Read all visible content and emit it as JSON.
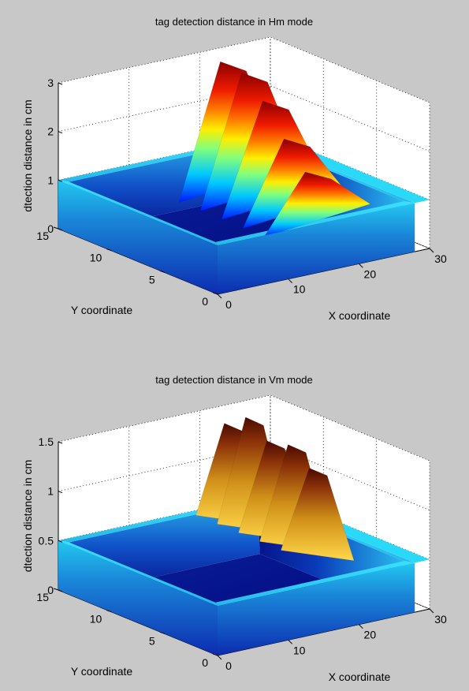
{
  "figure": {
    "background": "#c8c8c8"
  },
  "chart_data": [
    {
      "type": "surface",
      "title": "tag detection distance in Hm mode",
      "xlabel": "X coordinate",
      "ylabel": "Y coordinate",
      "zlabel": "dtection distance in cm",
      "xlim": [
        0,
        30
      ],
      "ylim": [
        0,
        15
      ],
      "zlim": [
        0,
        3
      ],
      "xticks": [
        "0",
        "10",
        "20",
        "30"
      ],
      "yticks": [
        "0",
        "5",
        "10",
        "15"
      ],
      "zticks": [
        "0",
        "1",
        "2",
        "3"
      ],
      "grid": true,
      "colormap": "jet",
      "plateau_z": 1,
      "floor_z": 0,
      "peaks": [
        {
          "x": 21,
          "y": 12.5,
          "z": 2.95
        },
        {
          "x": 21,
          "y": 10.5,
          "z": 2.9
        },
        {
          "x": 21,
          "y": 8.5,
          "z": 2.5
        },
        {
          "x": 21,
          "y": 6.5,
          "z": 1.9
        },
        {
          "x": 21,
          "y": 4.5,
          "z": 1.4
        }
      ]
    },
    {
      "type": "surface",
      "title": "tag detection distance in Vm mode",
      "xlabel": "X coordinate",
      "ylabel": "Y coordinate",
      "zlabel": "dtection distance in cm",
      "xlim": [
        0,
        30
      ],
      "ylim": [
        0,
        15
      ],
      "zlim": [
        0,
        1.5
      ],
      "xticks": [
        "0",
        "10",
        "20",
        "30"
      ],
      "yticks": [
        "0",
        "5",
        "10",
        "15"
      ],
      "zticks": [
        "0",
        "0.5",
        "1",
        "1.5"
      ],
      "grid": true,
      "colormap": "blue-to-hot",
      "plateau_z": 0.5,
      "floor_z": 0,
      "peaks": [
        {
          "x": 21,
          "y": 12.5,
          "z": 1.45
        },
        {
          "x": 21,
          "y": 10.5,
          "z": 1.6
        },
        {
          "x": 21,
          "y": 8.5,
          "z": 1.45
        },
        {
          "x": 21,
          "y": 6.5,
          "z": 1.5
        },
        {
          "x": 21,
          "y": 4.5,
          "z": 1.35
        }
      ]
    }
  ]
}
